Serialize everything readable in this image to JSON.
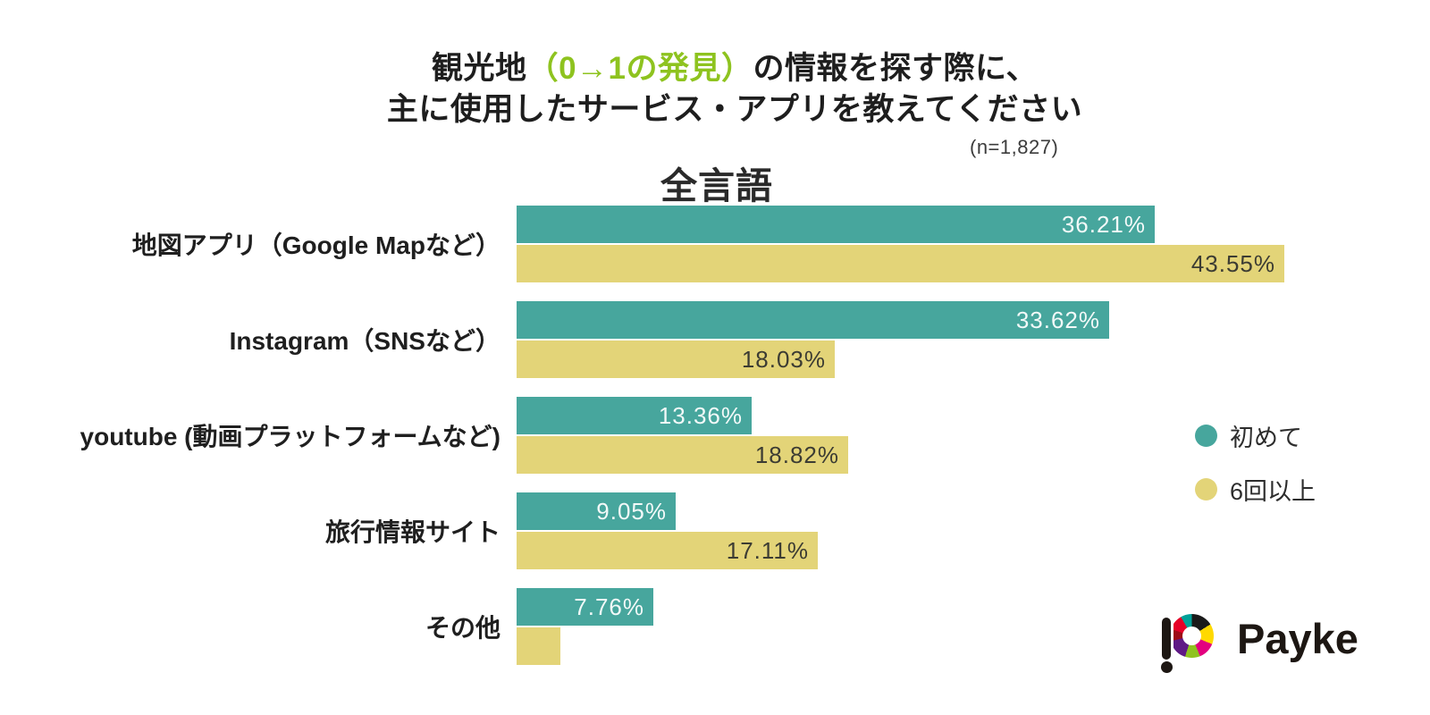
{
  "title": {
    "line1_pre": "観光地",
    "line1_highlight": "（0→1の発見）",
    "line1_post": "の情報を探す際に、",
    "line2": "主に使用したサービス・アプリを教えてください"
  },
  "sample_note": "(n=1,827)",
  "section_title": "全言語",
  "legend": {
    "items": [
      {
        "label": "初めて",
        "color": "#47a69d"
      },
      {
        "label": "6回以上",
        "color": "#e3d478"
      }
    ]
  },
  "logo": {
    "text": "Payke"
  },
  "colors": {
    "bar_first_time": "#47a69d",
    "bar_six_plus": "#e3d478",
    "title_highlight_green": "#8ec31f",
    "value_text_on_teal": "#ffffff",
    "value_text_on_yellow": "#3c3c33",
    "text_dark": "#1e1e1e"
  },
  "chart_data": {
    "type": "bar",
    "orientation": "horizontal",
    "title": "観光地（0→1の発見）の情報を探す際に、主に使用したサービス・アプリを教えてください",
    "subtitle": "全言語",
    "sample_size_note": "(n=1,827)",
    "categories": [
      "地図アプリ（Google Mapなど）",
      "Instagram（SNSなど）",
      "youtube (動画プラットフォームなど)",
      "旅行情報サイト",
      "その他"
    ],
    "series": [
      {
        "name": "初めて",
        "color": "#47a69d",
        "values": [
          36.21,
          33.62,
          13.36,
          9.05,
          7.76
        ],
        "labels": [
          "36.21%",
          "33.62%",
          "13.36%",
          "9.05%",
          "7.76%"
        ]
      },
      {
        "name": "6回以上",
        "color": "#e3d478",
        "values": [
          43.55,
          18.03,
          18.82,
          17.11,
          2.5
        ],
        "labels": [
          "43.55%",
          "18.03%",
          "18.82%",
          "17.11%",
          ""
        ]
      }
    ],
    "value_suffix": "%",
    "xlim": [
      0,
      45
    ],
    "grid": false,
    "legend_position": "right"
  }
}
